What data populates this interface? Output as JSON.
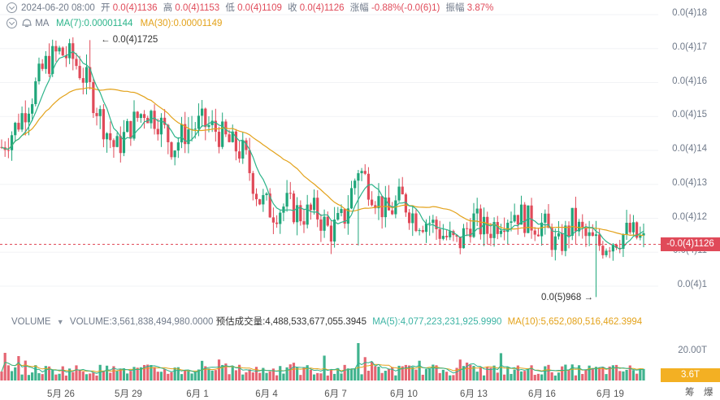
{
  "ohlc_bar": {
    "datetime": "2024-06-20 08:00",
    "open_label": "开",
    "open": "0.0(4)1136",
    "high_label": "高",
    "high": "0.0(4)1153",
    "low_label": "低",
    "low": "0.0(4)1109",
    "close_label": "收",
    "close": "0.0(4)1126",
    "change_label": "涨幅",
    "change": "-0.88%(-0.0(6)1)",
    "amplitude_label": "振幅",
    "amplitude": "3.87%"
  },
  "ma_bar": {
    "indicator": "MA",
    "ma7": "MA(7):0.00001144",
    "ma30": "MA(30):0.00001149"
  },
  "volume_bar": {
    "indicator": "VOLUME",
    "volume": "VOLUME:3,561,838,494,980.0000",
    "estimated": "预估成交量:4,488,533,677,055.3945",
    "ma5": "MA(5):4,077,223,231,925.9990",
    "ma10": "MA(10):5,652,080,516,462.3994"
  },
  "annotations": {
    "high_marker": "0.0(4)1725",
    "low_marker": "0.0(5)968"
  },
  "current_price_tag": "-0.0(4)1126",
  "volume_tag": "3.6T",
  "volume_axis_label": "20.00T",
  "corner_icons": [
    "筹",
    "爆"
  ],
  "colors": {
    "up": "#1fa67a",
    "down": "#e04a59",
    "ma7": "#2cb48a",
    "ma30": "#e3a21a",
    "price_line": "#e04a59",
    "volume_tag": "#f3b023"
  },
  "chart_data": {
    "type": "candlestick",
    "y_axis_labels": [
      "0.0(4)18",
      "0.0(4)17",
      "0.0(4)16",
      "0.0(4)15",
      "0.0(4)14",
      "0.0(4)13",
      "0.0(4)12",
      "0.0(4)11",
      "0.0(4)1"
    ],
    "y_axis_values": [
      1.8e-05,
      1.7e-05,
      1.6e-05,
      1.5e-05,
      1.4e-05,
      1.3e-05,
      1.2e-05,
      1.1e-05,
      1e-05
    ],
    "x_axis_labels": [
      "5月 26",
      "5月 29",
      "6月 1",
      "6月 4",
      "6月 7",
      "6月 10",
      "6月 13",
      "6月 16",
      "6月 19"
    ],
    "series": [
      {
        "name": "MA(7)"
      },
      {
        "name": "MA(30)"
      }
    ],
    "close_approx": [
      1.41e-05,
      1.47e-05,
      1.55e-05,
      1.65e-05,
      1.69e-05,
      1.67e-05,
      1.6e-05,
      1.49e-05,
      1.4e-05,
      1.47e-05,
      1.52e-05,
      1.49e-05,
      1.41e-05,
      1.46e-05,
      1.48e-05,
      1.46e-05,
      1.42e-05,
      1.39e-05,
      1.26e-05,
      1.22e-05,
      1.24e-05,
      1.21e-05,
      1.22e-05,
      1.16e-05,
      1.2e-05,
      1.35e-05,
      1.28e-05,
      1.21e-05,
      1.26e-05,
      1.2e-05,
      1.19e-05,
      1.15e-05,
      1.12e-05,
      1.2e-05,
      1.16e-05,
      1.2e-05,
      1.22e-05,
      1.19e-05,
      1.18e-05,
      1.11e-05,
      1.19e-05,
      1.14e-05,
      1.12e-05,
      1.14e-05,
      1.16e-05,
      1.13e-05
    ],
    "high": 1.725e-05,
    "low": 9.68e-06,
    "current": 1.126e-05
  }
}
